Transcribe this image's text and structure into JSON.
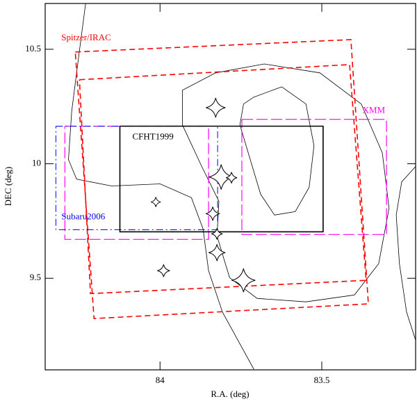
{
  "chart_data": {
    "type": "map",
    "x_label": "R.A. (deg)",
    "y_label": "DEC (deg)",
    "xlim": [
      84.355,
      83.21
    ],
    "ylim": [
      9.1,
      10.7
    ],
    "xticks": [
      84,
      83.5
    ],
    "yticks": [
      9.5,
      10,
      10.5
    ],
    "series": [
      {
        "color": "#000000",
        "dash": "solid",
        "width": 0.8,
        "x": [
          84.23,
          84.251,
          84.273,
          84.283,
          84.258,
          84.15,
          84.0,
          83.903,
          83.867,
          83.85,
          83.807,
          83.71
        ],
        "y": [
          10.7,
          10.473,
          10.23,
          10.018,
          9.933,
          9.903,
          9.912,
          9.852,
          9.715,
          9.533,
          9.352,
          9.103
        ]
      },
      {
        "color": "#000000",
        "dash": "solid",
        "width": 0.8,
        "x": [
          83.931,
          83.828,
          83.678,
          83.506,
          83.378,
          83.313,
          83.292,
          83.324,
          83.399,
          83.549,
          83.7,
          83.785,
          83.824,
          83.818,
          83.871,
          83.931,
          83.931
        ],
        "y": [
          10.321,
          10.397,
          10.436,
          10.397,
          10.261,
          10.048,
          9.806,
          9.564,
          9.427,
          9.397,
          9.412,
          9.503,
          9.685,
          9.836,
          9.988,
          10.17,
          10.321
        ]
      },
      {
        "color": "#000000",
        "dash": "solid",
        "width": 0.8,
        "x": [
          83.71,
          83.624,
          83.549,
          83.524,
          83.539,
          83.582,
          83.646,
          83.689,
          83.721,
          83.753,
          83.742,
          83.71
        ],
        "y": [
          10.291,
          10.336,
          10.261,
          10.079,
          9.897,
          9.791,
          9.776,
          9.867,
          10.018,
          10.17,
          10.261,
          10.291
        ]
      },
      {
        "color": "#000000",
        "dash": "solid",
        "width": 0.8,
        "x": [
          83.21,
          83.253,
          83.27,
          83.26,
          83.238,
          83.21
        ],
        "y": [
          9.988,
          9.921,
          9.776,
          9.564,
          9.352,
          9.23
        ]
      },
      {
        "name": "Spitzer/IRAC",
        "label_at": "above-left",
        "color": "#ff0000",
        "dash": "dashed",
        "width": 1.6,
        "x": [
          84.262,
          83.41,
          83.356,
          84.204,
          84.262
        ],
        "y": [
          10.488,
          10.542,
          9.388,
          9.324,
          10.488
        ]
      },
      {
        "color": "#ff0000",
        "dash": "dashed",
        "width": 1.6,
        "x": [
          84.249,
          83.414,
          83.363,
          84.215,
          84.249
        ],
        "y": [
          10.367,
          10.433,
          9.491,
          9.433,
          10.367
        ]
      },
      {
        "name": "XMM",
        "label_at": "above-right",
        "color": "#ff00ff",
        "dash": "long-dashed",
        "width": 1.2,
        "x": [
          83.747,
          83.3,
          83.3,
          83.747,
          83.747
        ],
        "y": [
          10.194,
          10.194,
          9.691,
          9.691,
          10.194
        ]
      },
      {
        "color": "#ff00ff",
        "dash": "long-dashed",
        "width": 1.2,
        "x": [
          84.294,
          83.85,
          83.85,
          84.294,
          84.294
        ],
        "y": [
          10.164,
          10.164,
          9.67,
          9.67,
          10.164
        ]
      },
      {
        "name": "Subaru2006",
        "label_at": "inside-bottom-left",
        "color": "#0000ff",
        "dash": "dash-dot",
        "width": 1.0,
        "x": [
          84.322,
          83.822,
          83.822,
          84.322,
          84.322
        ],
        "y": [
          10.164,
          10.164,
          9.712,
          9.712,
          10.164
        ]
      },
      {
        "name": "CFHT1999",
        "label_at": "inside-top-left",
        "color": "#000000",
        "dash": "solid",
        "width": 1.6,
        "x": [
          84.124,
          83.496,
          83.496,
          84.124,
          84.124
        ],
        "y": [
          10.164,
          10.164,
          9.703,
          9.703,
          10.164
        ]
      }
    ],
    "stars": {
      "color": "#000000",
      "x": [
        83.828,
        83.811,
        83.779,
        84.013,
        83.837,
        83.824,
        83.824,
        83.989,
        83.742
      ],
      "y": [
        10.245,
        9.942,
        9.939,
        9.833,
        9.782,
        9.694,
        9.612,
        9.533,
        9.491
      ],
      "size": [
        14,
        18,
        8,
        7,
        10,
        8,
        12,
        9,
        17
      ]
    }
  }
}
